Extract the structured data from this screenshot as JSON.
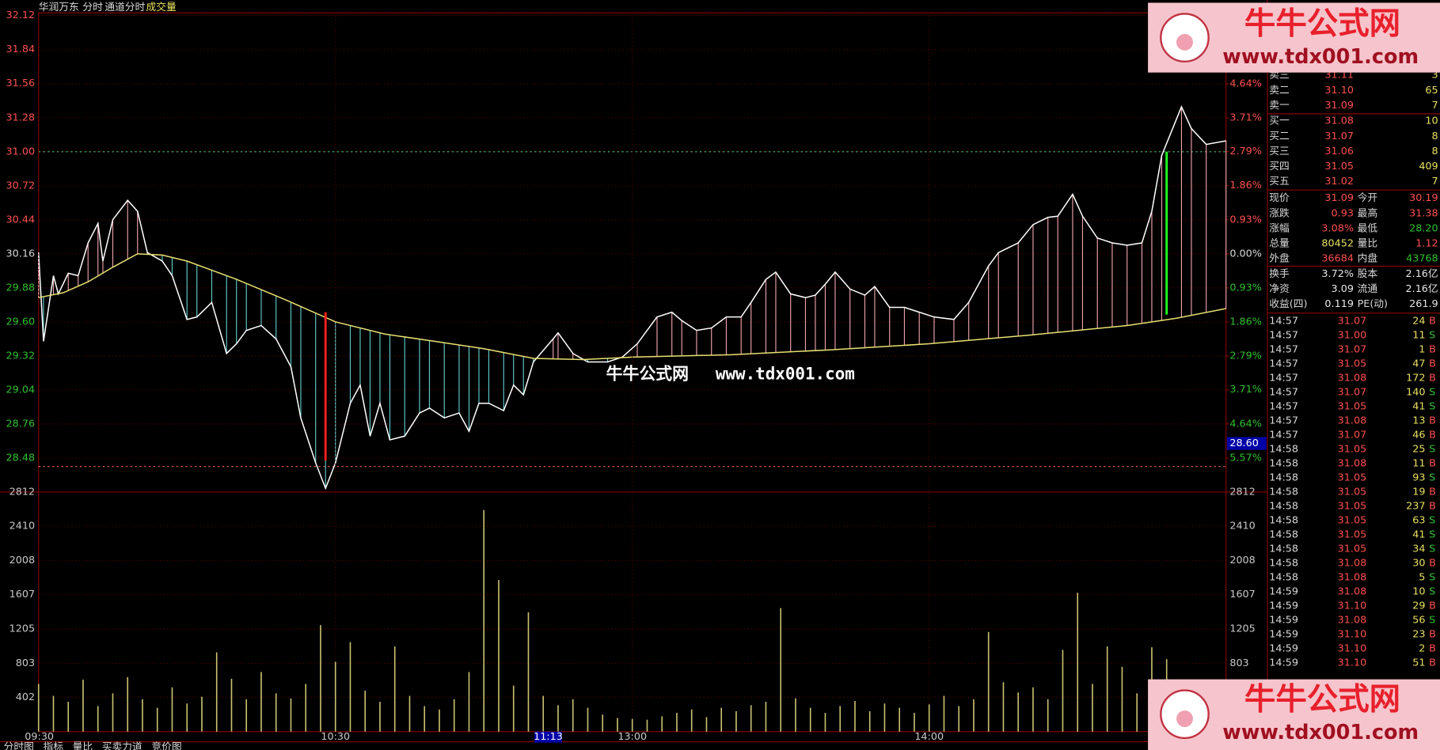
{
  "header": {
    "stock": "华润万东",
    "items": [
      "分时",
      "通道分时"
    ],
    "indicator": "成交量"
  },
  "chart_data": [
    {
      "type": "line",
      "xlim": [
        0,
        240
      ],
      "ylim": [
        28.2,
        32.12
      ],
      "yticks": [
        {
          "value": 32.12,
          "label": "32.12"
        },
        {
          "value": 31.84,
          "label": "31.84"
        },
        {
          "value": 31.56,
          "label": "31.56"
        },
        {
          "value": 31.28,
          "label": "31.28"
        },
        {
          "value": 31.0,
          "label": "31.00"
        },
        {
          "value": 30.72,
          "label": "30.72"
        },
        {
          "value": 30.44,
          "label": "30.44"
        },
        {
          "value": 30.16,
          "label": "30.16"
        },
        {
          "value": 29.88,
          "label": "29.88"
        },
        {
          "value": 29.6,
          "label": "29.60"
        },
        {
          "value": 29.32,
          "label": "29.32"
        },
        {
          "value": 29.04,
          "label": "29.04"
        },
        {
          "value": 28.76,
          "label": "28.76"
        },
        {
          "value": 28.48,
          "label": "28.48"
        }
      ],
      "y2lim": [
        -6.5,
        6.5
      ],
      "y2ticks": [
        {
          "value": 4.64,
          "label": "4.64%"
        },
        {
          "value": 3.71,
          "label": "3.71%"
        },
        {
          "value": 2.79,
          "label": "2.79%"
        },
        {
          "value": 1.86,
          "label": "1.86%"
        },
        {
          "value": 0.93,
          "label": "0.93%"
        },
        {
          "value": 0,
          "label": "0.00%"
        },
        {
          "value": -0.93,
          "label": "0.93%"
        },
        {
          "value": -1.86,
          "label": "1.86%"
        },
        {
          "value": -2.79,
          "label": "2.79%"
        },
        {
          "value": -3.71,
          "label": "3.71%"
        },
        {
          "value": -4.64,
          "label": "4.64%"
        },
        {
          "value": -5.57,
          "label": "5.57%"
        }
      ],
      "grid": true,
      "up_color": "#ff5050",
      "down_color": "#30c030",
      "hatch_up_color": "#e8a0a8",
      "hatch_down_color": "#60c8c8",
      "series": [
        {
          "color": "#ffffff",
          "x": [
            0,
            1,
            3,
            4,
            6,
            8,
            10,
            12,
            13,
            15,
            18,
            20,
            22,
            25,
            27,
            30,
            32,
            35,
            38,
            40,
            42,
            45,
            48,
            51,
            53,
            56,
            58,
            60,
            63,
            65,
            67,
            69,
            71,
            74,
            77,
            79,
            82,
            85,
            87,
            89,
            91,
            94,
            96,
            98,
            100,
            104,
            105,
            108,
            111,
            115,
            118,
            121,
            125,
            128,
            130,
            133,
            136,
            139,
            142,
            144,
            147,
            149,
            152,
            155,
            157,
            159,
            161,
            164,
            167,
            169,
            172,
            175,
            178,
            181,
            185,
            188,
            192,
            194,
            198,
            201,
            204,
            206,
            209,
            211,
            214,
            217,
            220,
            223,
            225,
            227,
            231,
            233,
            236,
            240
          ],
          "values": [
            30.17,
            29.44,
            29.98,
            29.83,
            30.0,
            29.98,
            30.25,
            30.41,
            30.1,
            30.44,
            30.6,
            30.51,
            30.17,
            30.1,
            29.98,
            29.62,
            29.64,
            29.76,
            29.34,
            29.42,
            29.53,
            29.57,
            29.46,
            29.23,
            28.81,
            28.44,
            28.23,
            28.44,
            28.93,
            29.08,
            28.66,
            28.93,
            28.63,
            28.66,
            28.85,
            28.89,
            28.81,
            28.85,
            28.7,
            28.93,
            28.93,
            28.87,
            29.08,
            29.0,
            29.27,
            29.46,
            29.51,
            29.34,
            29.27,
            29.27,
            29.31,
            29.42,
            29.64,
            29.68,
            29.61,
            29.53,
            29.55,
            29.64,
            29.64,
            29.76,
            29.95,
            30.01,
            29.83,
            29.8,
            29.82,
            29.91,
            30.01,
            29.87,
            29.82,
            29.89,
            29.72,
            29.72,
            29.68,
            29.64,
            29.62,
            29.76,
            30.06,
            30.17,
            30.25,
            30.4,
            30.46,
            30.47,
            30.65,
            30.47,
            30.29,
            30.25,
            30.23,
            30.25,
            30.51,
            30.97,
            31.37,
            31.19,
            31.06,
            31.09
          ]
        },
        {
          "color": "#e8e070",
          "x": [
            0,
            5,
            10,
            15,
            20,
            25,
            30,
            40,
            50,
            60,
            70,
            80,
            90,
            100,
            110,
            120,
            140,
            160,
            180,
            200,
            220,
            230,
            240
          ],
          "values": [
            29.8,
            29.84,
            29.93,
            30.05,
            30.16,
            30.15,
            30.1,
            29.95,
            29.78,
            29.6,
            29.5,
            29.44,
            29.38,
            29.3,
            29.29,
            29.31,
            29.33,
            29.37,
            29.42,
            29.49,
            29.57,
            29.63,
            29.71
          ]
        }
      ],
      "reference_lines": [
        {
          "value": 31.0,
          "color": "#40c080"
        },
        {
          "value": 28.41,
          "color": "#ff6060"
        }
      ],
      "signals": [
        {
          "x": 58,
          "values": [
            29.68,
            28.46
          ],
          "color": "#ff2020"
        },
        {
          "x": 228,
          "values": [
            31.0,
            29.66
          ],
          "color": "#20ff20"
        }
      ],
      "cursor_y": {
        "value": 28.6,
        "label": "28.60"
      }
    },
    {
      "type": "bar",
      "xlim": [
        0,
        240
      ],
      "ylim": [
        0,
        2812
      ],
      "yticks": [
        402,
        803,
        1205,
        1607,
        2008,
        2410,
        2812
      ],
      "xticks": [
        {
          "value": 0,
          "label": "09:30"
        },
        {
          "value": 60,
          "label": "10:30"
        },
        {
          "value": 120,
          "label": "13:00"
        },
        {
          "value": 180,
          "label": "14:00"
        }
      ],
      "cursor_x": {
        "value": 103,
        "label": "11:13"
      },
      "grid": true,
      "color": "#c8c070",
      "x": [
        0,
        3,
        6,
        9,
        12,
        15,
        18,
        21,
        24,
        27,
        30,
        33,
        36,
        39,
        42,
        45,
        48,
        51,
        54,
        57,
        60,
        63,
        66,
        69,
        72,
        75,
        78,
        81,
        84,
        87,
        90,
        93,
        96,
        99,
        102,
        105,
        108,
        111,
        114,
        117,
        120,
        123,
        126,
        129,
        132,
        135,
        138,
        141,
        144,
        147,
        150,
        153,
        156,
        159,
        162,
        165,
        168,
        171,
        174,
        177,
        180,
        183,
        186,
        189,
        192,
        195,
        198,
        201,
        204,
        207,
        210,
        213,
        216,
        219,
        222,
        225,
        228,
        231,
        234,
        237
      ],
      "values": [
        560,
        420,
        350,
        610,
        300,
        450,
        640,
        380,
        280,
        520,
        330,
        410,
        930,
        620,
        380,
        700,
        450,
        390,
        560,
        1250,
        820,
        1050,
        480,
        350,
        1000,
        420,
        300,
        260,
        380,
        700,
        2600,
        1780,
        540,
        1400,
        420,
        310,
        380,
        280,
        200,
        160,
        150,
        140,
        180,
        220,
        260,
        170,
        280,
        240,
        310,
        350,
        1450,
        390,
        280,
        220,
        300,
        360,
        240,
        330,
        280,
        220,
        320,
        420,
        300,
        380,
        1170,
        580,
        460,
        520,
        380,
        960,
        1630,
        560,
        1000,
        760,
        450,
        990,
        850,
        420,
        380,
        300
      ]
    }
  ],
  "order_book": {
    "asks": [
      {
        "label": "卖三",
        "price": "31.11",
        "volume": "3"
      },
      {
        "label": "卖二",
        "price": "31.10",
        "volume": "65"
      },
      {
        "label": "卖一",
        "price": "31.09",
        "volume": "7"
      }
    ],
    "bids": [
      {
        "label": "买一",
        "price": "31.08",
        "volume": "10"
      },
      {
        "label": "买二",
        "price": "31.07",
        "volume": "8"
      },
      {
        "label": "买三",
        "price": "31.06",
        "volume": "8"
      },
      {
        "label": "买四",
        "price": "31.05",
        "volume": "409"
      },
      {
        "label": "买五",
        "price": "31.02",
        "volume": "7"
      }
    ]
  },
  "quote": [
    {
      "label": "现价",
      "value": "31.09",
      "color": "#ff5050",
      "label2": "今开",
      "value2": "30.19",
      "color2": "#ff5050"
    },
    {
      "label": "涨跌",
      "value": "0.93",
      "color": "#ff5050",
      "label2": "最高",
      "value2": "31.38",
      "color2": "#ff5050"
    },
    {
      "label": "涨幅",
      "value": "3.08%",
      "color": "#ff5050",
      "label2": "最低",
      "value2": "28.20",
      "color2": "#30c030"
    },
    {
      "label": "总量",
      "value": "80452",
      "color": "#e8e060",
      "label2": "量比",
      "value2": "1.12",
      "color2": "#ff5050"
    },
    {
      "label": "外盘",
      "value": "36684",
      "color": "#ff5050",
      "label2": "内盘",
      "value2": "43768",
      "color2": "#30c030"
    },
    {
      "label": "换手",
      "value": "3.72%",
      "color": "#e8e8e8",
      "label2": "股本",
      "value2": "2.16亿",
      "color2": "#e8e8e8"
    },
    {
      "label": "净资",
      "value": "3.09",
      "color": "#e8e8e8",
      "label2": "流通",
      "value2": "2.16亿",
      "color2": "#e8e8e8"
    },
    {
      "label": "收益(四)",
      "value": "0.119",
      "color": "#e8e8e8",
      "label2": "PE(动)",
      "value2": "261.9",
      "color2": "#e8e8e8"
    }
  ],
  "trades": [
    [
      "14:57",
      "31.07",
      "24",
      "B"
    ],
    [
      "14:57",
      "31.00",
      "11",
      "S"
    ],
    [
      "14:57",
      "31.07",
      "1",
      "B"
    ],
    [
      "14:57",
      "31.05",
      "47",
      "B"
    ],
    [
      "14:57",
      "31.08",
      "172",
      "B"
    ],
    [
      "14:57",
      "31.07",
      "140",
      "S"
    ],
    [
      "14:57",
      "31.05",
      "41",
      "S"
    ],
    [
      "14:57",
      "31.08",
      "13",
      "B"
    ],
    [
      "14:57",
      "31.07",
      "46",
      "B"
    ],
    [
      "14:58",
      "31.05",
      "25",
      "S"
    ],
    [
      "14:58",
      "31.08",
      "11",
      "B"
    ],
    [
      "14:58",
      "31.05",
      "93",
      "S"
    ],
    [
      "14:58",
      "31.05",
      "19",
      "B"
    ],
    [
      "14:58",
      "31.05",
      "237",
      "B"
    ],
    [
      "14:58",
      "31.05",
      "63",
      "S"
    ],
    [
      "14:58",
      "31.05",
      "41",
      "S"
    ],
    [
      "14:58",
      "31.05",
      "34",
      "S"
    ],
    [
      "14:58",
      "31.08",
      "30",
      "B"
    ],
    [
      "14:58",
      "31.08",
      "5",
      "S"
    ],
    [
      "14:59",
      "31.08",
      "10",
      "S"
    ],
    [
      "14:59",
      "31.10",
      "29",
      "B"
    ],
    [
      "14:59",
      "31.08",
      "56",
      "S"
    ],
    [
      "14:59",
      "31.10",
      "23",
      "B"
    ],
    [
      "14:59",
      "31.10",
      "2",
      "B"
    ],
    [
      "14:59",
      "31.10",
      "51",
      "B"
    ]
  ],
  "tabs": [
    "分时图",
    "指标",
    "量比",
    "买卖力道",
    "竞价图"
  ],
  "watermark": {
    "name": "牛牛公式网",
    "url": "www.tdx001.com"
  }
}
